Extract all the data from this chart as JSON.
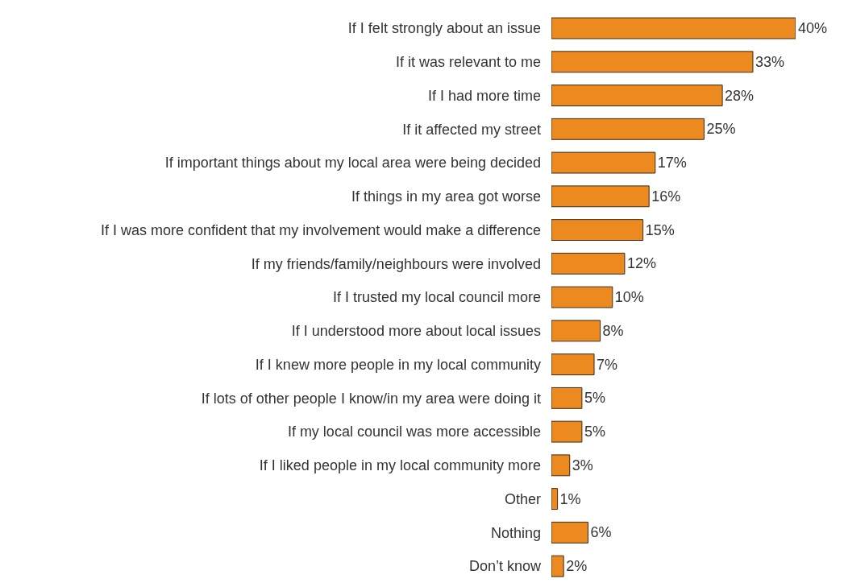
{
  "chart_data": {
    "type": "bar",
    "orientation": "horizontal",
    "categories": [
      "If I felt strongly about an issue",
      "If it was relevant to me",
      "If I had more time",
      "If it affected my street",
      "If important things about my local area were being decided",
      "If things in my area got worse",
      "If I was more confident that my involvement would make a difference",
      "If my friends/family/neighbours were involved",
      "If I trusted my local council more",
      "If I understood more about local issues",
      "If I knew more people in my local community",
      "If lots of other people I know/in my area were doing it",
      "If my local council was more accessible",
      "If I liked people in my local community more",
      "Other",
      "Nothing",
      "Don’t know"
    ],
    "values": [
      40,
      33,
      28,
      25,
      17,
      16,
      15,
      12,
      10,
      8,
      7,
      5,
      5,
      3,
      1,
      6,
      2
    ],
    "value_labels": [
      "40%",
      "33%",
      "28%",
      "25%",
      "17%",
      "16%",
      "15%",
      "12%",
      "10%",
      "8%",
      "7%",
      "5%",
      "5%",
      "3%",
      "1%",
      "6%",
      "2%"
    ],
    "color": "#ec8a1f"
  }
}
